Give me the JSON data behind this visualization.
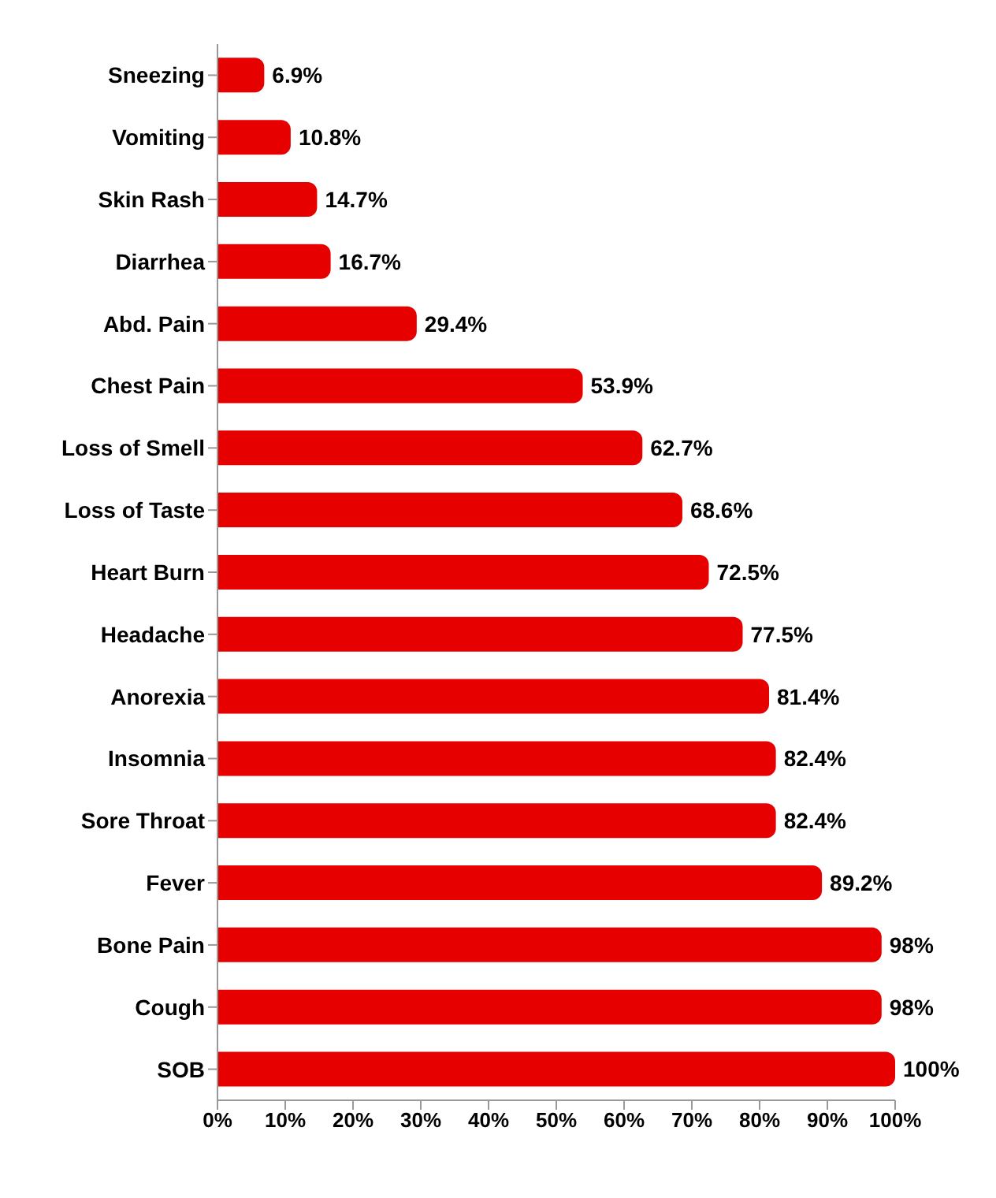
{
  "chart_data": {
    "type": "bar",
    "orientation": "horizontal",
    "categories": [
      "Sneezing",
      "Vomiting",
      "Skin Rash",
      "Diarrhea",
      "Abd. Pain",
      "Chest Pain",
      "Loss of Smell",
      "Loss of Taste",
      "Heart Burn",
      "Headache",
      "Anorexia",
      "Insomnia",
      "Sore Throat",
      "Fever",
      "Bone Pain",
      "Cough",
      "SOB"
    ],
    "values": [
      6.9,
      10.8,
      14.7,
      16.7,
      29.4,
      53.9,
      62.7,
      68.6,
      72.5,
      77.5,
      81.4,
      82.4,
      82.4,
      89.2,
      98,
      98,
      100
    ],
    "value_labels": [
      "6.9%",
      "10.8%",
      "14.7%",
      "16.7%",
      "29.4%",
      "53.9%",
      "62.7%",
      "68.6%",
      "72.5%",
      "77.5%",
      "81.4%",
      "82.4%",
      "82.4%",
      "89.2%",
      "98%",
      "98%",
      "100%"
    ],
    "color": "#e60000",
    "xlim": [
      0,
      100
    ],
    "xticks": [
      {
        "value": 0,
        "label": "0%"
      },
      {
        "value": 10,
        "label": "10%"
      },
      {
        "value": 20,
        "label": "20%"
      },
      {
        "value": 30,
        "label": "30%"
      },
      {
        "value": 40,
        "label": "40%"
      },
      {
        "value": 50,
        "label": "50%"
      },
      {
        "value": 60,
        "label": "60%"
      },
      {
        "value": 70,
        "label": "70%"
      },
      {
        "value": 80,
        "label": "80%"
      },
      {
        "value": 90,
        "label": "90%"
      },
      {
        "value": 100,
        "label": "100%"
      }
    ],
    "grid": false,
    "legend": false
  }
}
